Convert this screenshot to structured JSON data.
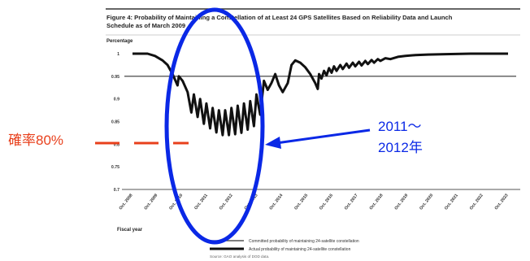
{
  "chart_data": {
    "type": "line",
    "title": "Figure 4: Probability of Maintaining a Constellation of at Least 24 GPS Satellites Based on Reliability Data and Launch Schedule as of March 2009",
    "ylabel": "Percentage",
    "xlabel": "Fiscal year",
    "ylim": [
      0.7,
      1.0
    ],
    "yticks": [
      "1",
      "0.95",
      "0.9",
      "0.85",
      "0.8",
      "0.75",
      "0.7"
    ],
    "categories": [
      "Oct. 2008",
      "Oct. 2009",
      "Oct. 2010",
      "Oct. 2011",
      "Oct. 2012",
      "Oct. 2013",
      "Oct. 2014",
      "Oct. 2015",
      "Oct. 2016",
      "Oct. 2017",
      "Oct. 2018",
      "Oct. 2019",
      "Oct. 2020",
      "Oct. 2021",
      "Oct. 2022",
      "Oct. 2023"
    ],
    "committed_level": 0.95,
    "series": [
      {
        "name": "Committed probability of maintaining 24-satellite constellation",
        "color": "#333333",
        "values": [
          [
            0,
            0.95
          ],
          [
            15,
            0.95
          ]
        ]
      },
      {
        "name": "Actual probability of maintaining 24-satellite constellation",
        "color": "#111111",
        "values": [
          [
            0,
            1.0
          ],
          [
            0.3,
            1.0
          ],
          [
            0.6,
            1.0
          ],
          [
            0.9,
            0.995
          ],
          [
            1.2,
            0.985
          ],
          [
            1.4,
            0.975
          ],
          [
            1.6,
            0.955
          ],
          [
            1.8,
            0.93
          ],
          [
            1.85,
            0.95
          ],
          [
            2.0,
            0.94
          ],
          [
            2.2,
            0.915
          ],
          [
            2.35,
            0.87
          ],
          [
            2.45,
            0.91
          ],
          [
            2.6,
            0.86
          ],
          [
            2.7,
            0.9
          ],
          [
            2.85,
            0.845
          ],
          [
            2.95,
            0.89
          ],
          [
            3.1,
            0.835
          ],
          [
            3.2,
            0.88
          ],
          [
            3.35,
            0.826
          ],
          [
            3.45,
            0.875
          ],
          [
            3.6,
            0.82
          ],
          [
            3.7,
            0.875
          ],
          [
            3.85,
            0.82
          ],
          [
            3.95,
            0.88
          ],
          [
            4.1,
            0.822
          ],
          [
            4.2,
            0.885
          ],
          [
            4.35,
            0.825
          ],
          [
            4.45,
            0.89
          ],
          [
            4.6,
            0.832
          ],
          [
            4.7,
            0.895
          ],
          [
            4.85,
            0.84
          ],
          [
            4.95,
            0.91
          ],
          [
            5.1,
            0.865
          ],
          [
            5.25,
            0.94
          ],
          [
            5.4,
            0.92
          ],
          [
            5.55,
            0.935
          ],
          [
            5.7,
            0.955
          ],
          [
            5.85,
            0.93
          ],
          [
            6.0,
            0.915
          ],
          [
            6.2,
            0.935
          ],
          [
            6.35,
            0.975
          ],
          [
            6.5,
            0.985
          ],
          [
            6.7,
            0.98
          ],
          [
            6.9,
            0.97
          ],
          [
            7.1,
            0.955
          ],
          [
            7.3,
            0.935
          ],
          [
            7.4,
            0.922
          ],
          [
            7.45,
            0.955
          ],
          [
            7.55,
            0.945
          ],
          [
            7.65,
            0.962
          ],
          [
            7.75,
            0.952
          ],
          [
            7.85,
            0.968
          ],
          [
            7.95,
            0.958
          ],
          [
            8.05,
            0.972
          ],
          [
            8.15,
            0.962
          ],
          [
            8.3,
            0.975
          ],
          [
            8.4,
            0.966
          ],
          [
            8.55,
            0.978
          ],
          [
            8.65,
            0.969
          ],
          [
            8.8,
            0.98
          ],
          [
            8.9,
            0.972
          ],
          [
            9.05,
            0.982
          ],
          [
            9.15,
            0.974
          ],
          [
            9.3,
            0.984
          ],
          [
            9.4,
            0.977
          ],
          [
            9.55,
            0.986
          ],
          [
            9.65,
            0.98
          ],
          [
            9.8,
            0.988
          ],
          [
            9.9,
            0.984
          ],
          [
            10.1,
            0.99
          ],
          [
            10.3,
            0.988
          ],
          [
            10.6,
            0.993
          ],
          [
            10.9,
            0.995
          ],
          [
            11.3,
            0.997
          ],
          [
            11.8,
            0.998
          ],
          [
            12.5,
            0.999
          ],
          [
            13.5,
            1.0
          ],
          [
            15,
            1.0
          ]
        ]
      }
    ],
    "legend": "bottom-center",
    "grid": false
  },
  "source": "Source: GAO analysis of DOD data.",
  "annotations": {
    "probability_label": "確率80%",
    "period_label_line1": "2011～",
    "period_label_line2": "2012年",
    "label_color": "#e8401c",
    "accent_color": "#0a28e6"
  }
}
